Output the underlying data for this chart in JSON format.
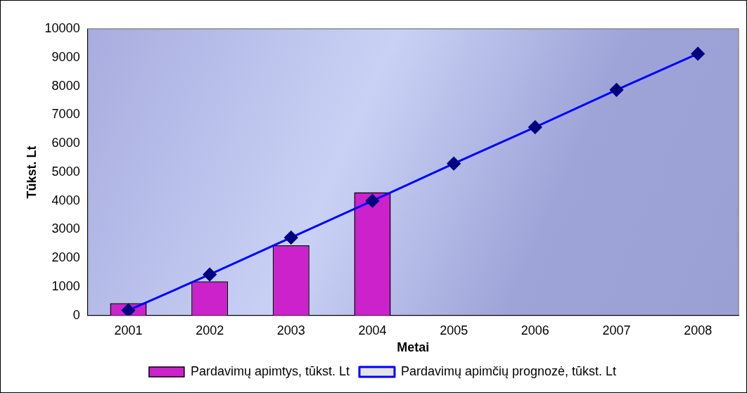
{
  "chart_data": {
    "type": "bar",
    "xlabel": "Metai",
    "ylabel": "Tūkst. Lt",
    "categories": [
      "2001",
      "2002",
      "2003",
      "2004",
      "2005",
      "2006",
      "2007",
      "2008"
    ],
    "series": [
      {
        "name": "Pardavimų apimtys, tūkst. Lt",
        "color": "#cc22cc",
        "values": [
          430,
          1190,
          2450,
          4300,
          null,
          null,
          null,
          null
        ]
      },
      {
        "name": "Pardavimų apimčių prognozė, tūkst. Lt",
        "type": "line",
        "color": "#0000ff",
        "values": [
          180,
          1430,
          2720,
          4000,
          5300,
          6570,
          7870,
          9130
        ]
      }
    ],
    "ylim": [
      0,
      10000
    ],
    "yticks": [
      0,
      1000,
      2000,
      3000,
      4000,
      5000,
      6000,
      7000,
      8000,
      9000,
      10000
    ],
    "grid": false,
    "legend": "bottom",
    "marker": "diamond"
  }
}
